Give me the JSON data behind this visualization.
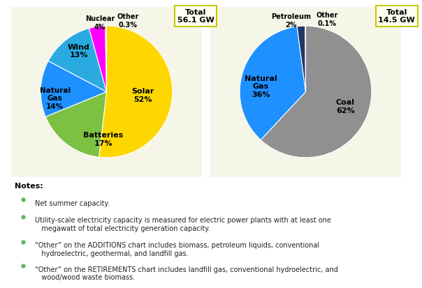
{
  "left_pie": {
    "values": [
      52,
      17,
      14,
      13,
      4,
      0.3
    ],
    "colors": [
      "#FFD700",
      "#7DC142",
      "#1E90FF",
      "#29ABE2",
      "#FF00FF",
      "#FF8C00"
    ],
    "total": "Total\n56.1 GW"
  },
  "right_pie": {
    "values": [
      62,
      36,
      2,
      0.1
    ],
    "colors": [
      "#909090",
      "#1E90FF",
      "#1F3864",
      "#C8C8C8"
    ],
    "total": "Total\n14.5 GW"
  },
  "notes_title": "Notes:",
  "notes": [
    "Net summer capacity.",
    "Utility-scale electricity capacity is measured for electric power plants with at least one\n   megawatt of total electricity generation capacity.",
    "“Other” on the ADDITIONS chart includes biomass, petroleum liquids, conventional\n   hydroelectric, geothermal, and landfill gas.",
    "“Other” on the RETIREMENTS chart includes landfill gas, conventional hydroelectric, and\n   wood/wood waste biomass."
  ],
  "note_bullet_color": "#5CB85C",
  "background_color": "#FFFFFF",
  "panel_bg": "#F5F5E8",
  "total_box_facecolor": "#FFFFF0",
  "total_box_edgecolor": "#C8C800"
}
